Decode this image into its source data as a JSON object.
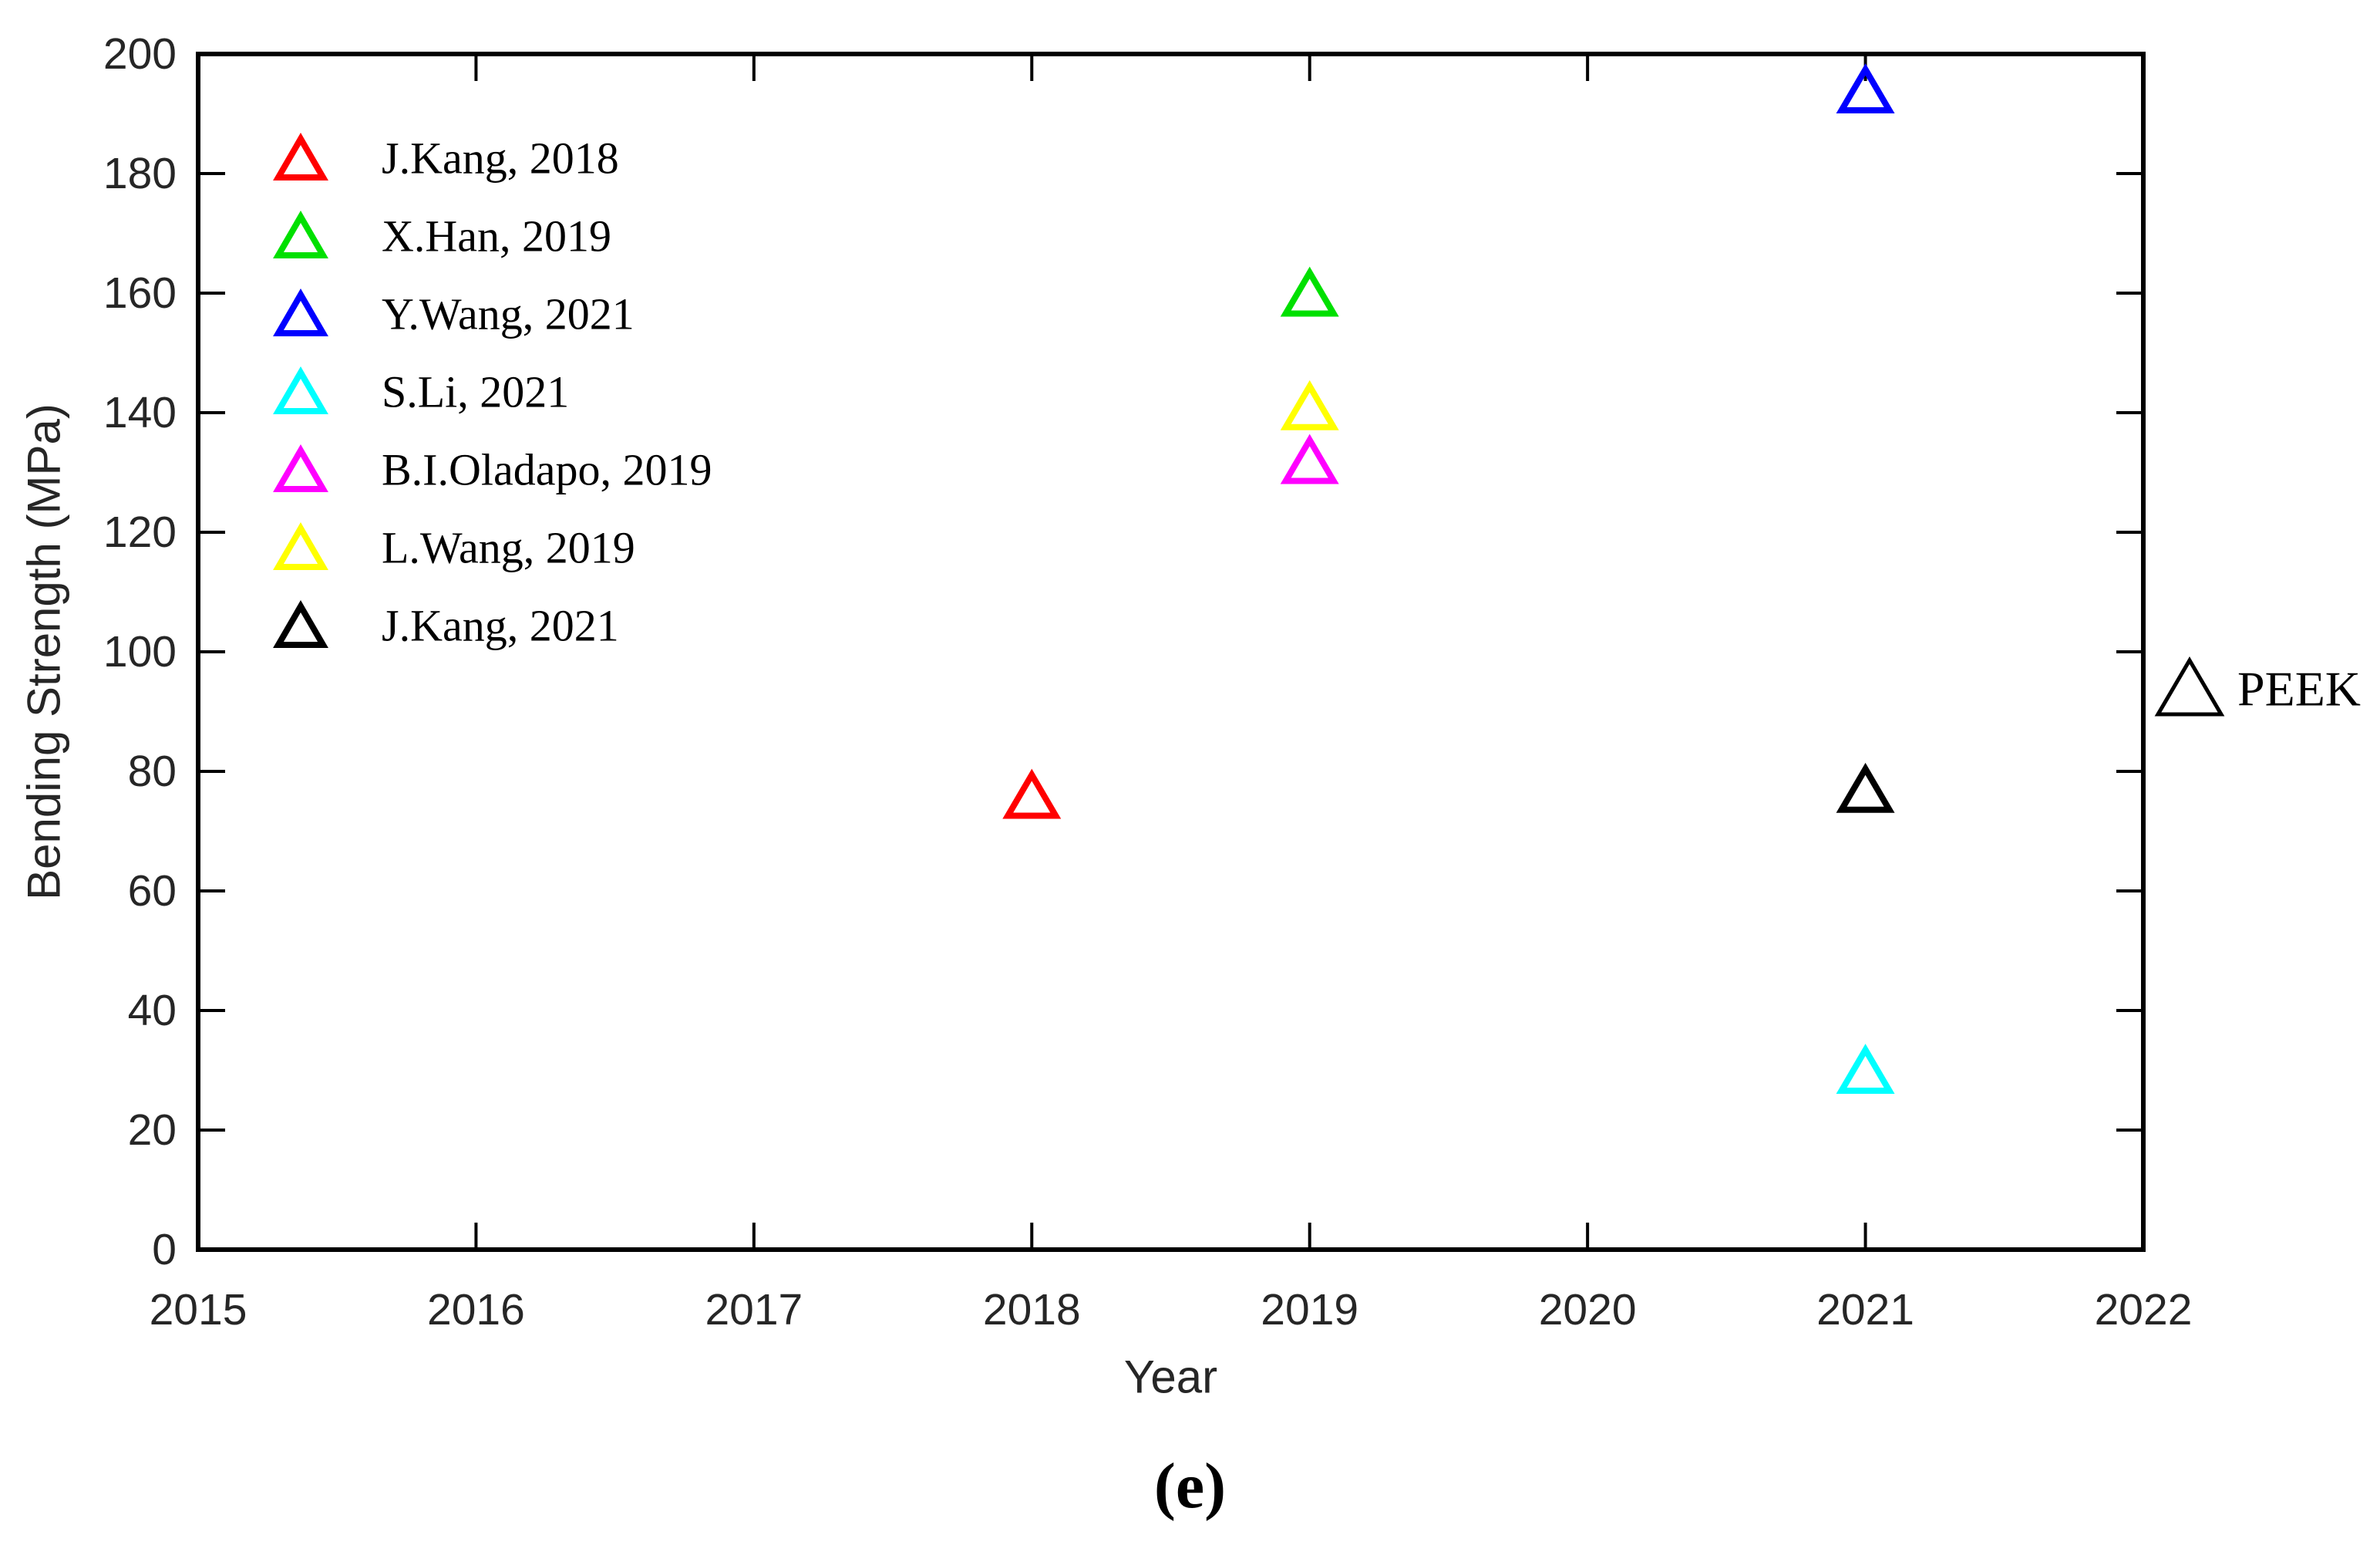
{
  "figure": {
    "caption_label": "(e)"
  },
  "chart_data": {
    "type": "scatter",
    "marker_shape": "triangle-up-hollow",
    "title": "",
    "xlabel": "Year",
    "ylabel": "Bending Strength (MPa)",
    "xlim": [
      2015,
      2022
    ],
    "ylim": [
      0,
      200
    ],
    "x_ticks": [
      2015,
      2016,
      2017,
      2018,
      2019,
      2020,
      2021,
      2022
    ],
    "y_ticks": [
      0,
      20,
      40,
      60,
      80,
      100,
      120,
      140,
      160,
      180,
      200
    ],
    "grid": false,
    "legend_position": "upper-left-inside",
    "series": [
      {
        "name": "J.Kang, 2018",
        "color": "#FF0000",
        "points": [
          {
            "x": 2018,
            "y": 76
          }
        ]
      },
      {
        "name": "X.Han, 2019",
        "color": "#00E000",
        "points": [
          {
            "x": 2019,
            "y": 160
          }
        ]
      },
      {
        "name": "Y.Wang, 2021",
        "color": "#0000FF",
        "points": [
          {
            "x": 2021,
            "y": 194
          }
        ]
      },
      {
        "name": "S.Li, 2021",
        "color": "#00FFFF",
        "points": [
          {
            "x": 2021,
            "y": 30
          }
        ]
      },
      {
        "name": "B.I.Oladapo, 2019",
        "color": "#FF00FF",
        "points": [
          {
            "x": 2019,
            "y": 132
          }
        ]
      },
      {
        "name": "L.Wang, 2019",
        "color": "#FFFF00",
        "points": [
          {
            "x": 2019,
            "y": 141
          }
        ]
      },
      {
        "name": "J.Kang, 2021",
        "color": "#000000",
        "points": [
          {
            "x": 2021,
            "y": 77
          }
        ]
      }
    ],
    "annotations": [
      {
        "label": "PEEK",
        "marker": "triangle-up-hollow",
        "color": "#000000",
        "position": "right-middle-outside"
      }
    ],
    "colors": {
      "axis": "#000000",
      "tick_label": "#262626",
      "background": "#FFFFFF"
    }
  }
}
